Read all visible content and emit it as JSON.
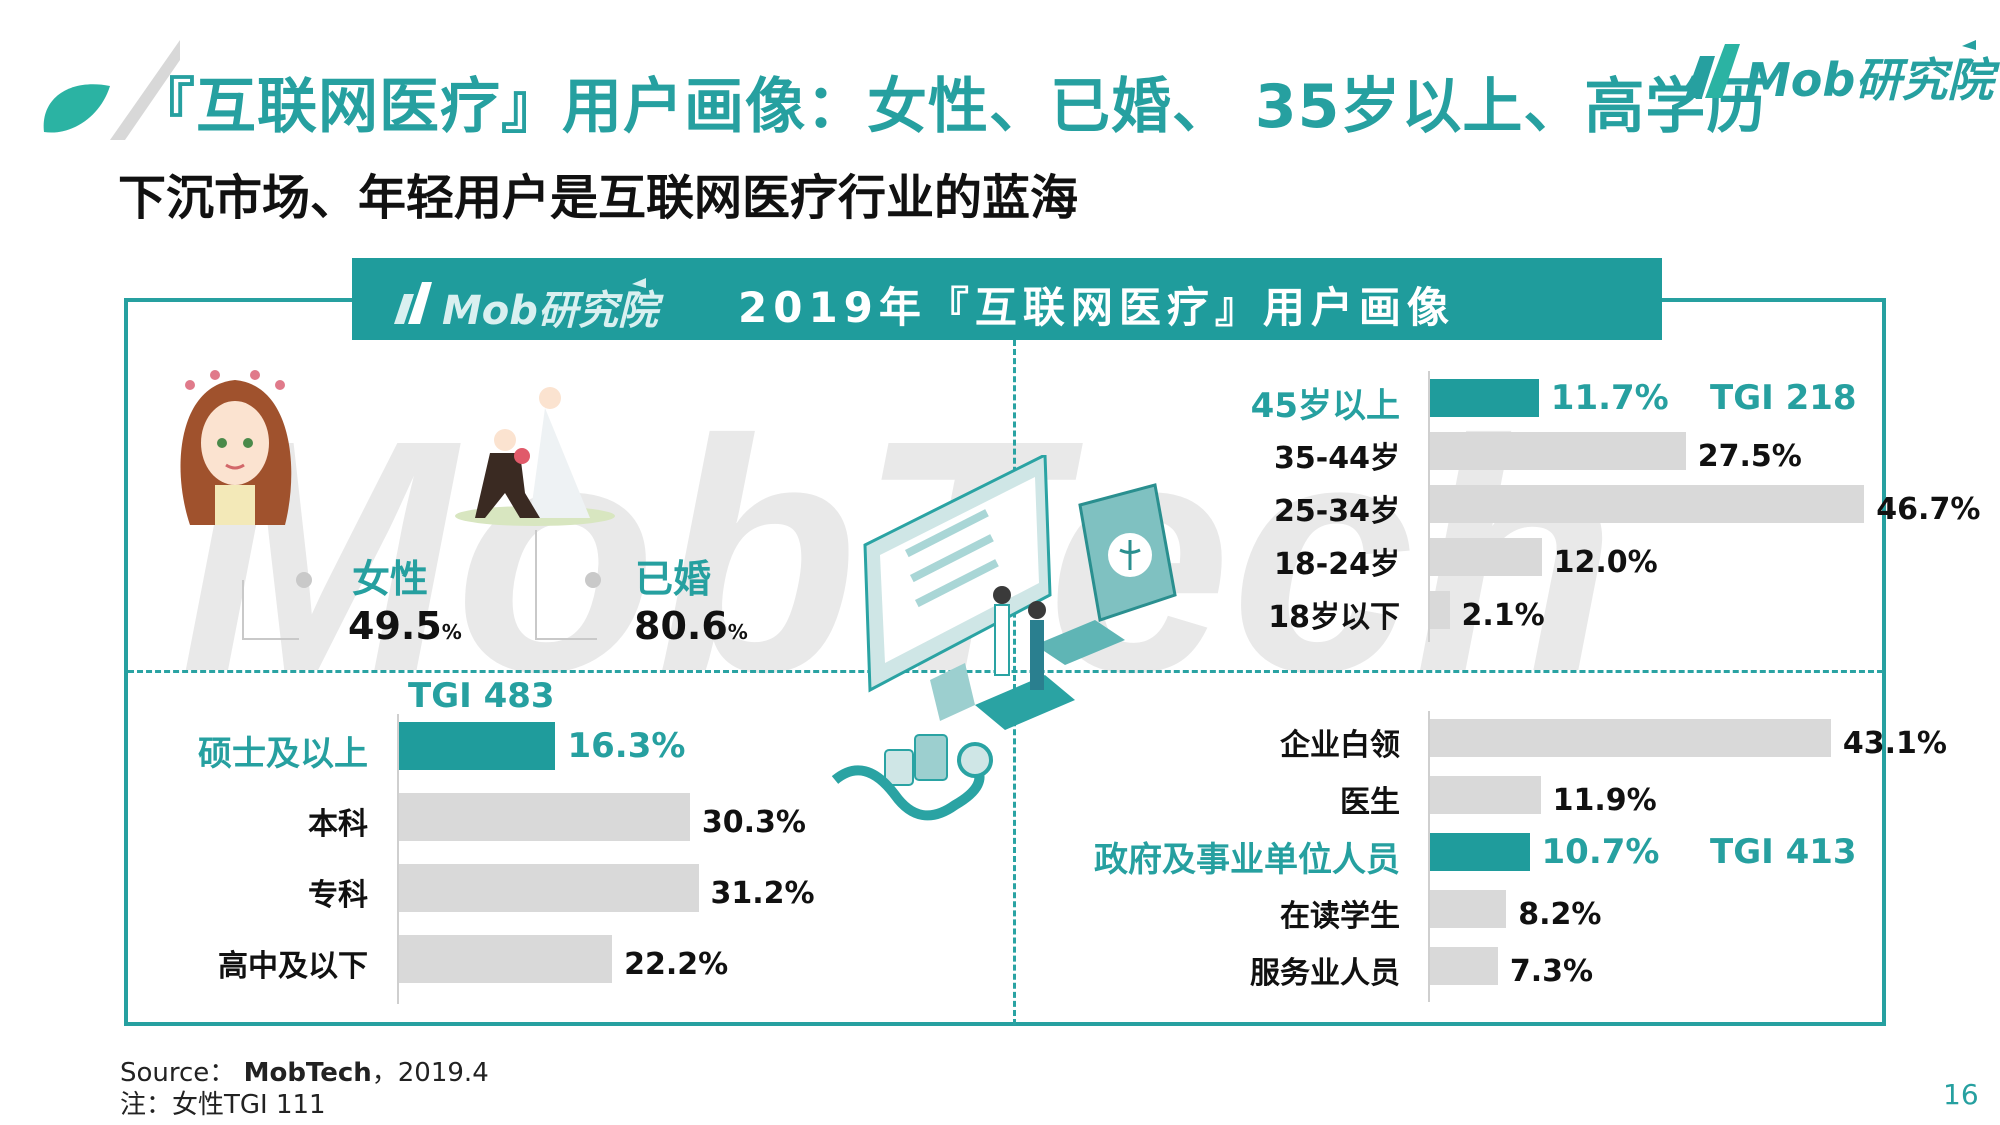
{
  "header": {
    "title": "『互联网医疗』用户画像：女性、已婚、 35岁以上、高学历",
    "subtitle": "下沉市场、年轻用户是互联网医疗行业的蓝海",
    "logo_text": "Mob研究院"
  },
  "panel": {
    "logo_text": "Mob研究院",
    "title": "2019年『互联网医疗』用户画像",
    "watermark_text": "MobTech"
  },
  "demographics": {
    "gender": {
      "label": "女性",
      "value": "49.5",
      "unit": "%"
    },
    "marital": {
      "label": "已婚",
      "value": "80.6",
      "unit": "%"
    }
  },
  "chart_data": [
    {
      "type": "bar",
      "name": "education",
      "categories": [
        "硕士及以上",
        "本科",
        "专科",
        "高中及以下"
      ],
      "values": [
        16.3,
        30.3,
        31.2,
        22.2
      ],
      "value_labels": [
        "16.3%",
        "30.3%",
        "31.2%",
        "22.2%"
      ],
      "highlight": "硕士及以上",
      "tgi": "TGI 483",
      "colors": {
        "highlight": "#1f9c9c",
        "default": "#d9d9d9"
      }
    },
    {
      "type": "bar",
      "name": "age",
      "categories": [
        "45岁以上",
        "35-44岁",
        "25-34岁",
        "18-24岁",
        "18岁以下"
      ],
      "values": [
        11.7,
        27.5,
        46.7,
        12.0,
        2.1
      ],
      "value_labels": [
        "11.7%",
        "27.5%",
        "46.7%",
        "12.0%",
        "2.1%"
      ],
      "highlight": "45岁以上",
      "tgi": "TGI 218",
      "colors": {
        "highlight": "#1f9c9c",
        "default": "#d9d9d9"
      }
    },
    {
      "type": "bar",
      "name": "occupation",
      "categories": [
        "企业白领",
        "医生",
        "政府及事业单位人员",
        "在读学生",
        "服务业人员"
      ],
      "values": [
        43.1,
        11.9,
        10.7,
        8.2,
        7.3
      ],
      "value_labels": [
        "43.1%",
        "11.9%",
        "10.7%",
        "8.2%",
        "7.3%"
      ],
      "highlight": "政府及事业单位人员",
      "tgi": "TGI 413",
      "colors": {
        "highlight": "#1f9c9c",
        "default": "#d9d9d9"
      }
    }
  ],
  "footer": {
    "source_prefix": "Source：",
    "source_name": "MobTech",
    "source_date": "，2019.4",
    "note": "注：女性TGI 111",
    "page": "16"
  },
  "colors": {
    "accent": "#26a0a0",
    "bar_default": "#d9d9d9",
    "text": "#111111"
  }
}
